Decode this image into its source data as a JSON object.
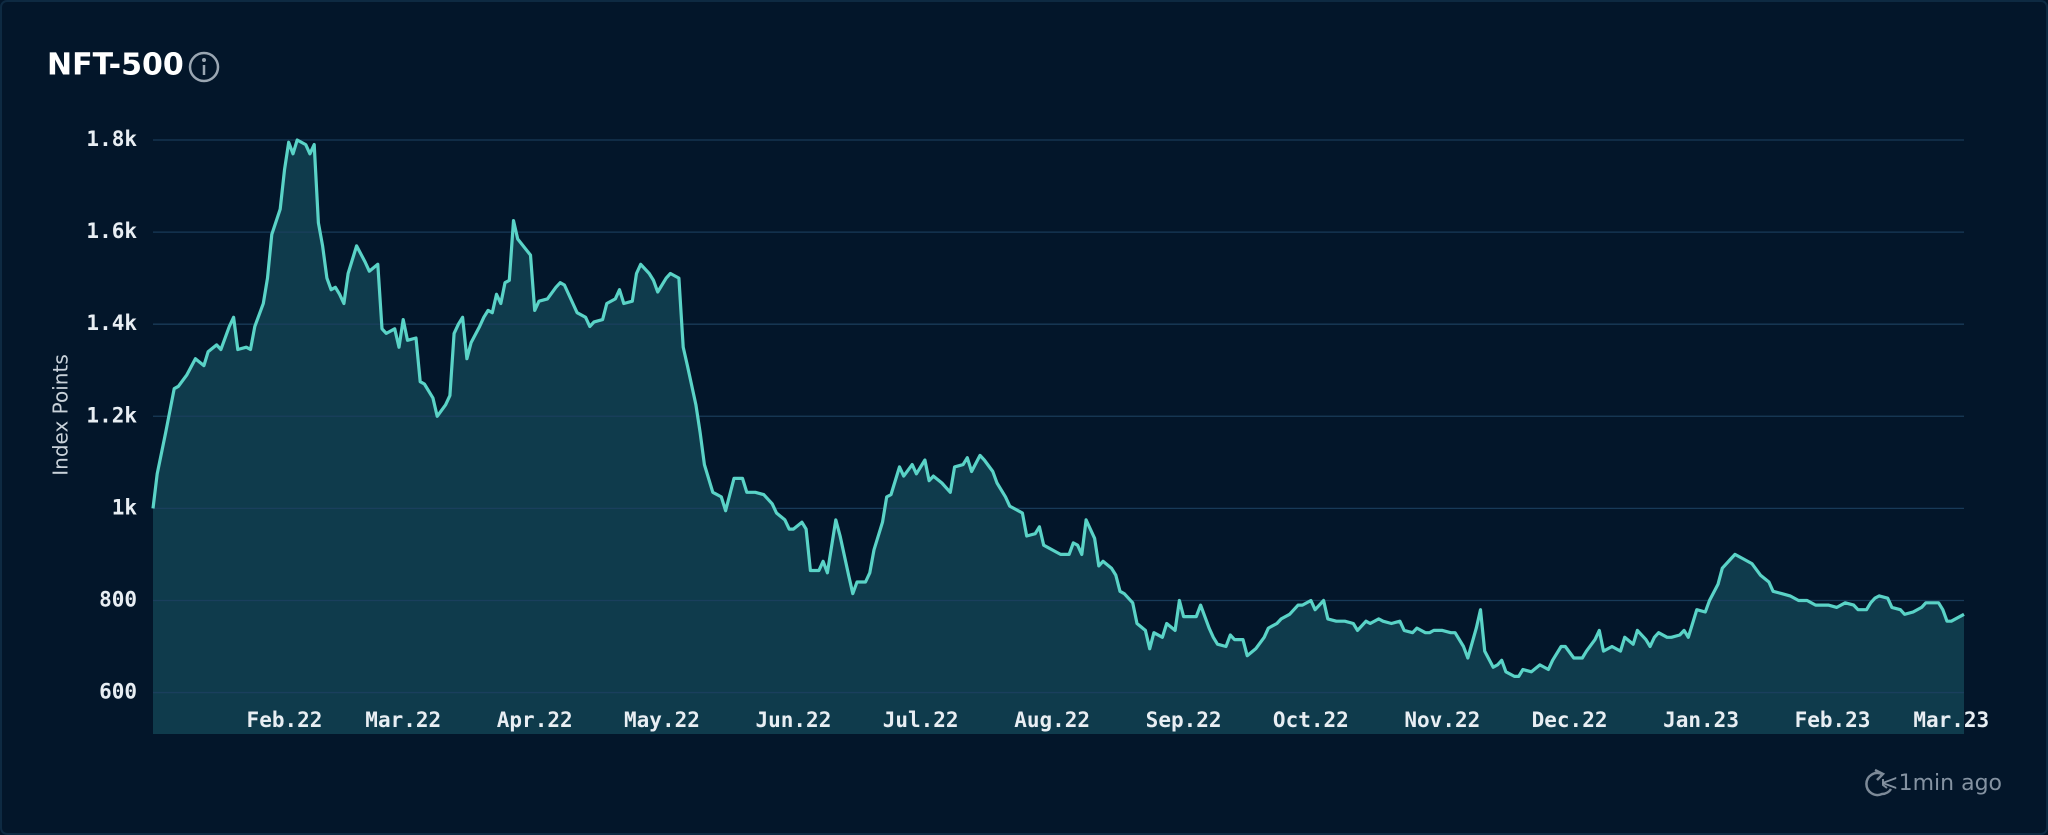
{
  "chart_data": {
    "type": "area",
    "title": "NFT-500",
    "ylabel": "Index Points",
    "color": "#5ad3c7",
    "grid": true,
    "xlim": [
      0,
      427
    ],
    "ylim": [
      510,
      1800
    ],
    "xticks": [
      {
        "value": 31,
        "label": "Feb.22"
      },
      {
        "value": 59,
        "label": "Mar.22"
      },
      {
        "value": 90,
        "label": "Apr.22"
      },
      {
        "value": 120,
        "label": "May.22"
      },
      {
        "value": 151,
        "label": "Jun.22"
      },
      {
        "value": 181,
        "label": "Jul.22"
      },
      {
        "value": 212,
        "label": "Aug.22"
      },
      {
        "value": 243,
        "label": "Sep.22"
      },
      {
        "value": 273,
        "label": "Oct.22"
      },
      {
        "value": 304,
        "label": "Nov.22"
      },
      {
        "value": 334,
        "label": "Dec.22"
      },
      {
        "value": 365,
        "label": "Jan.23"
      },
      {
        "value": 396,
        "label": "Feb.23"
      },
      {
        "value": 424,
        "label": "Mar.23"
      }
    ],
    "yticks": [
      600,
      800,
      {
        "value": 1000,
        "label": "1k"
      },
      {
        "value": 1200,
        "label": "1.2k"
      },
      {
        "value": 1400,
        "label": "1.4k"
      },
      {
        "value": 1600,
        "label": "1.6k"
      },
      {
        "value": 1800,
        "label": "1.8k"
      }
    ],
    "x": [
      0,
      1,
      3,
      5,
      6,
      8,
      10,
      12,
      13,
      15,
      16,
      18,
      19,
      20,
      22,
      23,
      24,
      26,
      27,
      28,
      30,
      31,
      32,
      33,
      34,
      36,
      37,
      38,
      39,
      40,
      41,
      42,
      43,
      44,
      45,
      46,
      48,
      50,
      51,
      53,
      54,
      55,
      57,
      58,
      59,
      60,
      62,
      63,
      64,
      66,
      67,
      69,
      70,
      71,
      72,
      73,
      74,
      75,
      77,
      78,
      79,
      80,
      81,
      82,
      83,
      84,
      85,
      86,
      89,
      90,
      91,
      93,
      95,
      96,
      97,
      99,
      100,
      102,
      103,
      104,
      106,
      107,
      109,
      110,
      111,
      113,
      114,
      115,
      117,
      118,
      119,
      121,
      122,
      124,
      125,
      126,
      128,
      129,
      130,
      132,
      134,
      135,
      137,
      139,
      140,
      142,
      144,
      146,
      147,
      149,
      150,
      151,
      153,
      154,
      155,
      157,
      158,
      159,
      161,
      162,
      164,
      165,
      166,
      168,
      169,
      170,
      172,
      173,
      174,
      176,
      177,
      179,
      180,
      182,
      183,
      184,
      186,
      187,
      188,
      189,
      191,
      192,
      193,
      195,
      196,
      198,
      199,
      201,
      202,
      205,
      206,
      208,
      209,
      210,
      213,
      214,
      216,
      217,
      218,
      219,
      220,
      222,
      223,
      224,
      226,
      227,
      228,
      229,
      231,
      232,
      234,
      235,
      236,
      238,
      239,
      241,
      242,
      243,
      245,
      246,
      247,
      249,
      250,
      251,
      253,
      254,
      255,
      257,
      258,
      260,
      262,
      263,
      265,
      266,
      268,
      270,
      271,
      273,
      274,
      276,
      277,
      279,
      281,
      283,
      284,
      286,
      287,
      289,
      290,
      292,
      294,
      295,
      297,
      298,
      300,
      301,
      302,
      304,
      306,
      307,
      309,
      310,
      312,
      313,
      314,
      316,
      317,
      318,
      319,
      321,
      322,
      323,
      325,
      327,
      329,
      330,
      332,
      333,
      335,
      337,
      338,
      340,
      341,
      342,
      344,
      346,
      347,
      349,
      350,
      352,
      353,
      354,
      355,
      357,
      358,
      360,
      361,
      362,
      364,
      366,
      367,
      369,
      370,
      372,
      373,
      375,
      377,
      379,
      381,
      382,
      384,
      386,
      388,
      390,
      392,
      394,
      395,
      397,
      399,
      401,
      402,
      404,
      405,
      406,
      407,
      409,
      410,
      412,
      413,
      415,
      417,
      418,
      420,
      421,
      422,
      423,
      424,
      427
    ],
    "values": [
      1000,
      1075,
      1165,
      1260,
      1265,
      1290,
      1325,
      1310,
      1340,
      1355,
      1345,
      1395,
      1415,
      1345,
      1350,
      1345,
      1395,
      1445,
      1500,
      1595,
      1650,
      1735,
      1795,
      1770,
      1800,
      1790,
      1770,
      1790,
      1620,
      1570,
      1500,
      1475,
      1480,
      1465,
      1445,
      1510,
      1570,
      1535,
      1515,
      1530,
      1390,
      1380,
      1390,
      1350,
      1410,
      1365,
      1370,
      1275,
      1270,
      1240,
      1200,
      1225,
      1245,
      1380,
      1400,
      1415,
      1325,
      1360,
      1395,
      1415,
      1430,
      1425,
      1465,
      1445,
      1490,
      1495,
      1625,
      1585,
      1550,
      1430,
      1450,
      1455,
      1480,
      1490,
      1485,
      1445,
      1425,
      1415,
      1395,
      1405,
      1410,
      1445,
      1455,
      1475,
      1445,
      1450,
      1510,
      1530,
      1510,
      1495,
      1470,
      1500,
      1510,
      1500,
      1350,
      1310,
      1225,
      1165,
      1095,
      1035,
      1025,
      995,
      1065,
      1065,
      1035,
      1035,
      1030,
      1010,
      990,
      975,
      955,
      955,
      970,
      955,
      865,
      865,
      885,
      860,
      975,
      940,
      855,
      815,
      840,
      840,
      860,
      910,
      970,
      1025,
      1030,
      1090,
      1070,
      1095,
      1075,
      1105,
      1060,
      1070,
      1055,
      1045,
      1035,
      1090,
      1095,
      1110,
      1080,
      1115,
      1105,
      1080,
      1055,
      1025,
      1005,
      990,
      940,
      945,
      960,
      920,
      905,
      900,
      900,
      925,
      920,
      900,
      975,
      935,
      875,
      885,
      870,
      855,
      820,
      815,
      795,
      750,
      735,
      695,
      730,
      720,
      750,
      735,
      800,
      765,
      765,
      765,
      790,
      740,
      720,
      705,
      700,
      725,
      715,
      715,
      680,
      695,
      720,
      740,
      750,
      760,
      770,
      790,
      790,
      800,
      780,
      800,
      760,
      755,
      755,
      750,
      735,
      755,
      750,
      760,
      755,
      750,
      755,
      735,
      730,
      740,
      730,
      730,
      735,
      735,
      730,
      730,
      700,
      675,
      740,
      780,
      690,
      655,
      660,
      670,
      645,
      635,
      635,
      650,
      645,
      660,
      650,
      670,
      700,
      700,
      675,
      675,
      690,
      715,
      735,
      690,
      700,
      690,
      720,
      705,
      735,
      715,
      700,
      720,
      730,
      720,
      720,
      725,
      735,
      720,
      780,
      775,
      800,
      835,
      870,
      890,
      900,
      890,
      880,
      855,
      840,
      820,
      815,
      810,
      800,
      800,
      790,
      790,
      790,
      785,
      795,
      790,
      780,
      780,
      795,
      805,
      810,
      805,
      785,
      780,
      770,
      775,
      785,
      795,
      795,
      795,
      780,
      755,
      755,
      770
    ]
  },
  "footer": {
    "status": "<1min ago"
  }
}
